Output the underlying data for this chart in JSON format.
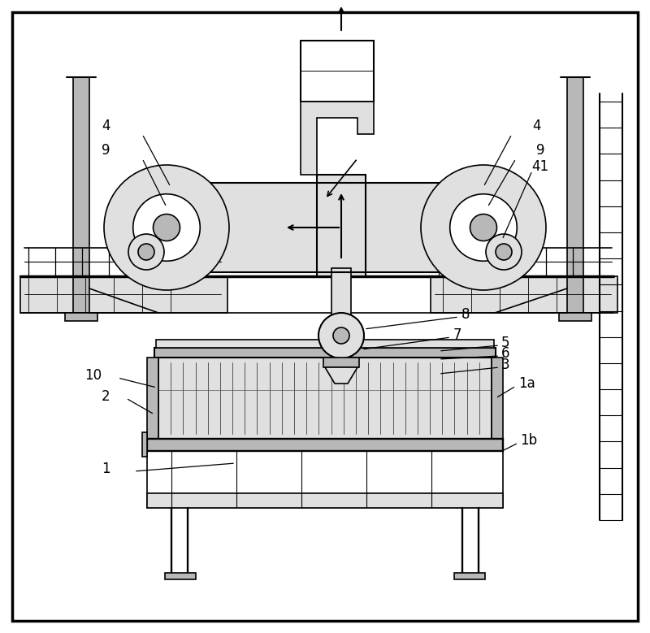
{
  "figure_width": 8.0,
  "figure_height": 7.79,
  "dpi": 100,
  "bg_color": "#ffffff",
  "line_color": "#000000",
  "line_width": 1.2,
  "thick_line": 2.0,
  "lgray": "#e0e0e0",
  "mgray": "#b8b8b8",
  "dgray": "#909090",
  "border_lw": 2.5
}
